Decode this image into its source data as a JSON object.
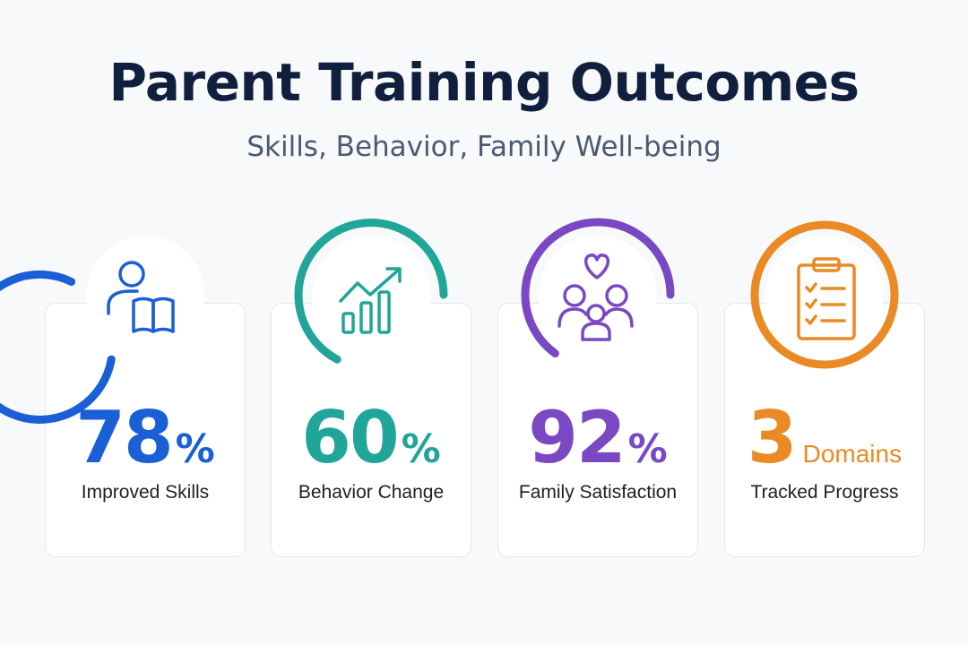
{
  "header": {
    "title": "Parent Training Outcomes",
    "subtitle": "Skills, Behavior, Family Well-being"
  },
  "stats": [
    {
      "value": "78",
      "unit": "%",
      "label": "Improved Skills",
      "color": "#1a5fd6",
      "icon": "parent-reading-book-icon"
    },
    {
      "value": "60",
      "unit": "%",
      "label": "Behavior Change",
      "color": "#1fa699",
      "icon": "rising-bar-chart-icon"
    },
    {
      "value": "92",
      "unit": "%",
      "label": "Family Satisfaction",
      "color": "#7a48c2",
      "icon": "family-heart-icon"
    },
    {
      "value": "3",
      "unit": "Domains",
      "label": "Tracked Progress",
      "color": "#ea8a24",
      "icon": "checklist-clipboard-icon"
    }
  ]
}
